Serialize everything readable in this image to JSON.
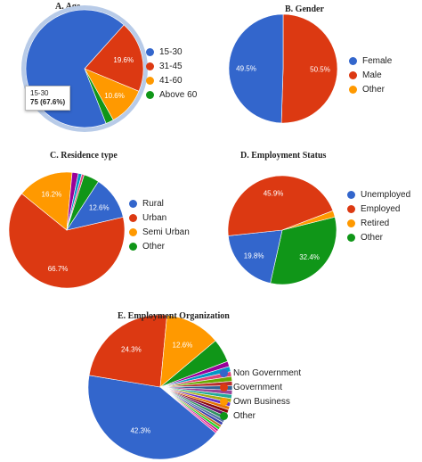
{
  "chart_data": [
    {
      "type": "pie",
      "title": "A. Age",
      "labels": [
        "15-30",
        "31-45",
        "41-60",
        "Above 60"
      ],
      "values": [
        67.6,
        19.6,
        10.6,
        2.2
      ],
      "data_labels": [
        "",
        "19.6%",
        "10.6%",
        ""
      ],
      "colors": [
        "#3366cc",
        "#dc3912",
        "#ff9900",
        "#109618"
      ],
      "legend": "right",
      "tooltip": {
        "label": "15-30",
        "value": "75 (67.6%)"
      }
    },
    {
      "type": "pie",
      "title": "B. Gender",
      "labels": [
        "Female",
        "Male",
        "Other"
      ],
      "values": [
        49.5,
        50.5,
        0
      ],
      "data_labels": [
        "49.5%",
        "50.5%",
        ""
      ],
      "colors": [
        "#3366cc",
        "#dc3912",
        "#ff9900"
      ],
      "legend": "right"
    },
    {
      "type": "pie",
      "title": "C. Residence type",
      "labels": [
        "Rural",
        "Urban",
        "Semi Urban",
        "Other"
      ],
      "values": [
        12.6,
        66.7,
        16.2,
        4.5
      ],
      "data_labels": [
        "12.6%",
        "66.7%",
        "16.2%",
        ""
      ],
      "colors": [
        "#3366cc",
        "#dc3912",
        "#ff9900",
        "#109618"
      ],
      "extra_slices": [
        1.8,
        1.0,
        0.7
      ],
      "extra_colors": [
        "#990099",
        "#0099c6",
        "#dd4477"
      ],
      "legend": "right"
    },
    {
      "type": "pie",
      "title": "D. Employment Status",
      "labels": [
        "Unemployed",
        "Employed",
        "Retired",
        "Other"
      ],
      "values": [
        19.8,
        45.9,
        1.9,
        32.4
      ],
      "data_labels": [
        "19.8%",
        "45.9%",
        "",
        "32.4%"
      ],
      "colors": [
        "#3366cc",
        "#dc3912",
        "#ff9900",
        "#109618"
      ],
      "legend": "right"
    },
    {
      "type": "pie",
      "title": "E. Employment Organization",
      "labels": [
        "Non Government",
        "Government",
        "Own Business",
        "Other"
      ],
      "values": [
        42.3,
        24.3,
        12.6,
        5.4
      ],
      "data_labels": [
        "42.3%",
        "24.3%",
        "12.6%",
        ""
      ],
      "colors": [
        "#3366cc",
        "#dc3912",
        "#ff9900",
        "#109618"
      ],
      "extra_slices": [
        1.2,
        1.2,
        1.1,
        1.1,
        1.0,
        1.0,
        1.0,
        0.9,
        0.9,
        0.9,
        0.8,
        0.8,
        0.8,
        0.8,
        0.7,
        0.7,
        0.6,
        0.6,
        0.5,
        0.5
      ],
      "extra_colors": [
        "#990099",
        "#0099c6",
        "#dd4477",
        "#66aa00",
        "#b82e2e",
        "#316395",
        "#994499",
        "#22aa99",
        "#aaaa11",
        "#6633cc",
        "#e67300",
        "#8b0707",
        "#651067",
        "#329262",
        "#5574a6",
        "#3b3eac",
        "#b77322",
        "#16d620",
        "#b91383",
        "#f4359e"
      ],
      "legend": "right"
    }
  ]
}
